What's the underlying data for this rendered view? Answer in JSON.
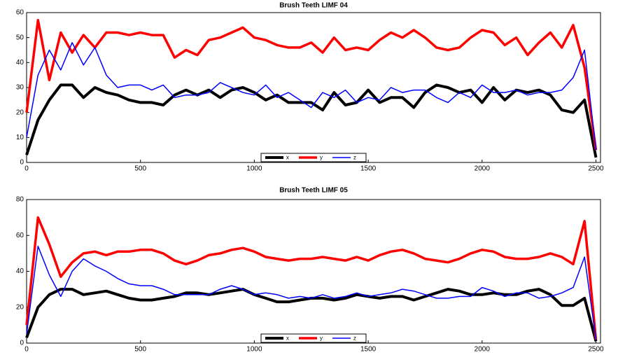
{
  "chart_data": [
    {
      "type": "line",
      "title": "Brush Teeth LIMF 04",
      "x": [
        0,
        50,
        100,
        150,
        200,
        250,
        300,
        350,
        400,
        450,
        500,
        550,
        600,
        650,
        700,
        750,
        800,
        850,
        900,
        950,
        1000,
        1050,
        1100,
        1150,
        1200,
        1250,
        1300,
        1350,
        1400,
        1450,
        1500,
        1550,
        1600,
        1650,
        1700,
        1750,
        1800,
        1850,
        1900,
        1950,
        2000,
        2050,
        2100,
        2150,
        2200,
        2250,
        2300,
        2350,
        2400,
        2450,
        2500
      ],
      "series": [
        {
          "name": "x",
          "color": "#000000",
          "values": [
            3,
            17,
            25,
            31,
            31,
            26,
            30,
            28,
            27,
            25,
            24,
            24,
            23,
            27,
            29,
            27,
            29,
            26,
            29,
            30,
            28,
            25,
            27,
            24,
            24,
            24,
            21,
            28,
            23,
            24,
            29,
            24,
            26,
            26,
            22,
            28,
            31,
            30,
            28,
            29,
            24,
            30,
            25,
            29,
            28,
            29,
            27,
            21,
            20,
            25,
            2
          ]
        },
        {
          "name": "y",
          "color": "#ff0000",
          "values": [
            20,
            57,
            33,
            52,
            44,
            51,
            46,
            52,
            52,
            51,
            52,
            51,
            51,
            42,
            45,
            43,
            49,
            50,
            52,
            54,
            50,
            49,
            47,
            46,
            46,
            48,
            44,
            50,
            45,
            46,
            45,
            49,
            52,
            50,
            53,
            50,
            46,
            45,
            46,
            50,
            53,
            52,
            47,
            50,
            43,
            48,
            52,
            46,
            55,
            38,
            5
          ]
        },
        {
          "name": "z",
          "color": "#0000ff",
          "values": [
            10,
            35,
            45,
            37,
            48,
            39,
            46,
            35,
            30,
            31,
            31,
            29,
            31,
            26,
            27,
            27,
            28,
            32,
            30,
            28,
            27,
            31,
            26,
            28,
            25,
            22,
            28,
            26,
            29,
            24,
            26,
            25,
            30,
            28,
            29,
            29,
            26,
            24,
            28,
            26,
            31,
            28,
            28,
            29,
            27,
            28,
            28,
            29,
            34,
            45,
            5
          ]
        }
      ],
      "xlim": [
        0,
        2520
      ],
      "xticks": [
        0,
        500,
        1000,
        1500,
        2000,
        2500
      ],
      "ylim": [
        0,
        60
      ],
      "yticks": [
        0,
        10,
        20,
        30,
        40,
        50,
        60
      ],
      "legend": "bottom"
    },
    {
      "type": "line",
      "title": "Brush Teeth LIMF 05",
      "x": [
        0,
        50,
        100,
        150,
        200,
        250,
        300,
        350,
        400,
        450,
        500,
        550,
        600,
        650,
        700,
        750,
        800,
        850,
        900,
        950,
        1000,
        1050,
        1100,
        1150,
        1200,
        1250,
        1300,
        1350,
        1400,
        1450,
        1500,
        1550,
        1600,
        1650,
        1700,
        1750,
        1800,
        1850,
        1900,
        1950,
        2000,
        2050,
        2100,
        2150,
        2200,
        2250,
        2300,
        2350,
        2400,
        2450,
        2500
      ],
      "series": [
        {
          "name": "x",
          "color": "#000000",
          "values": [
            3,
            20,
            27,
            30,
            30,
            27,
            28,
            29,
            27,
            25,
            24,
            24,
            25,
            26,
            28,
            28,
            27,
            28,
            29,
            30,
            27,
            25,
            23,
            23,
            24,
            25,
            25,
            24,
            25,
            27,
            26,
            25,
            26,
            26,
            24,
            26,
            28,
            30,
            29,
            27,
            27,
            28,
            27,
            27,
            29,
            30,
            27,
            21,
            21,
            25,
            1
          ]
        },
        {
          "name": "y",
          "color": "#ff0000",
          "values": [
            10,
            70,
            55,
            37,
            45,
            50,
            51,
            49,
            51,
            51,
            52,
            52,
            50,
            46,
            44,
            46,
            49,
            50,
            52,
            53,
            51,
            48,
            47,
            46,
            47,
            47,
            48,
            47,
            46,
            48,
            46,
            49,
            51,
            52,
            50,
            47,
            46,
            45,
            47,
            50,
            52,
            51,
            48,
            47,
            47,
            48,
            50,
            48,
            44,
            68,
            2
          ]
        },
        {
          "name": "z",
          "color": "#0000ff",
          "values": [
            5,
            54,
            38,
            26,
            40,
            47,
            43,
            40,
            36,
            33,
            32,
            32,
            30,
            27,
            27,
            27,
            27,
            30,
            32,
            30,
            27,
            28,
            27,
            25,
            26,
            25,
            27,
            25,
            26,
            28,
            26,
            27,
            28,
            30,
            29,
            27,
            25,
            25,
            26,
            26,
            31,
            29,
            26,
            28,
            28,
            25,
            26,
            28,
            31,
            48,
            2
          ]
        }
      ],
      "xlim": [
        0,
        2520
      ],
      "xticks": [
        0,
        500,
        1000,
        1500,
        2000,
        2500
      ],
      "ylim": [
        0,
        80
      ],
      "yticks": [
        0,
        20,
        40,
        60,
        80
      ],
      "legend": "bottom"
    }
  ]
}
